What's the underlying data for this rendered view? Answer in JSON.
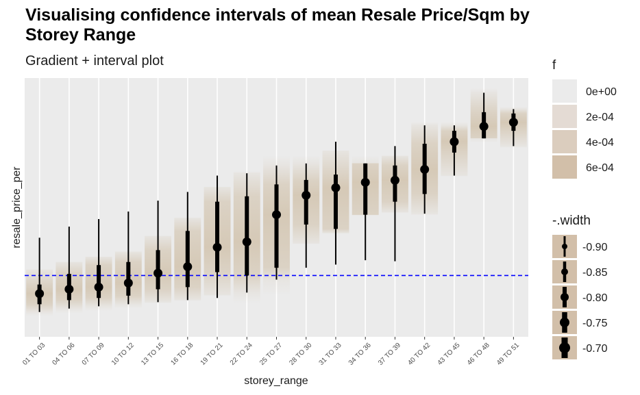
{
  "chart_data": {
    "type": "gradient-interval",
    "title": "Visualising confidence intervals of mean Resale Price/Sqm by Storey Range",
    "subtitle": "Gradient + interval plot",
    "xlabel": "storey_range",
    "ylabel": "resale_price_per",
    "categories": [
      "01 TO 03",
      "04 TO 06",
      "07 TO 09",
      "10 TO 12",
      "13 TO 15",
      "16 TO 18",
      "19 TO 21",
      "22 TO 24",
      "25 TO 27",
      "28 TO 30",
      "31 TO 33",
      "34 TO 36",
      "37 TO 39",
      "40 TO 42",
      "43 TO 45",
      "46 TO 48",
      "49 TO 51"
    ],
    "y_axis_range": [
      0,
      100
    ],
    "reference_line": {
      "value": 23.7,
      "style": "dashed",
      "color": "#0000ff"
    },
    "points": [
      {
        "mean": 16.7,
        "thick": [
          12.6,
          20.2
        ],
        "thin": [
          9.6,
          38.3
        ],
        "gradient": [
          8.0,
          26.0
        ]
      },
      {
        "mean": 18.4,
        "thick": [
          14.2,
          24.3
        ],
        "thin": [
          10.9,
          42.6
        ],
        "gradient": [
          9.0,
          29.0
        ]
      },
      {
        "mean": 19.2,
        "thick": [
          15.0,
          27.7
        ],
        "thin": [
          11.8,
          45.5
        ],
        "gradient": [
          10.0,
          31.0
        ]
      },
      {
        "mean": 20.8,
        "thick": [
          15.9,
          28.9
        ],
        "thin": [
          12.6,
          48.4
        ],
        "gradient": [
          11.0,
          33.0
        ]
      },
      {
        "mean": 24.6,
        "thick": [
          18.4,
          33.5
        ],
        "thin": [
          13.4,
          52.6
        ],
        "gradient": [
          13.0,
          39.0
        ]
      },
      {
        "mean": 27.1,
        "thick": [
          19.2,
          40.9
        ],
        "thin": [
          14.2,
          56.0
        ],
        "gradient": [
          14.0,
          46.0
        ]
      },
      {
        "mean": 34.6,
        "thick": [
          25.0,
          52.2
        ],
        "thin": [
          15.0,
          62.3
        ],
        "gradient": [
          16.0,
          58.0
        ]
      },
      {
        "mean": 36.7,
        "thick": [
          23.7,
          54.3
        ],
        "thin": [
          17.1,
          63.2
        ],
        "gradient": [
          13.0,
          64.0
        ]
      },
      {
        "mean": 47.2,
        "thick": [
          26.7,
          58.9
        ],
        "thin": [
          22.1,
          66.2
        ],
        "gradient": [
          16.0,
          70.0
        ]
      },
      {
        "mean": 54.7,
        "thick": [
          43.4,
          60.6
        ],
        "thin": [
          26.7,
          67.0
        ],
        "gradient": [
          36.0,
          70.0
        ]
      },
      {
        "mean": 57.6,
        "thick": [
          41.7,
          62.7
        ],
        "thin": [
          27.9,
          75.4
        ],
        "gradient": [
          40.0,
          72.0
        ]
      },
      {
        "mean": 59.7,
        "thick": [
          47.2,
          67.0
        ],
        "thin": [
          29.6,
          67.0
        ],
        "gradient": [
          47.0,
          70.0
        ]
      },
      {
        "mean": 60.5,
        "thick": [
          52.2,
          66.2
        ],
        "thin": [
          29.2,
          73.7
        ],
        "gradient": [
          48.0,
          70.0
        ]
      },
      {
        "mean": 64.7,
        "thick": [
          55.2,
          74.6
        ],
        "thin": [
          47.6,
          81.7
        ],
        "gradient": [
          47.0,
          83.0
        ]
      },
      {
        "mean": 75.4,
        "thick": [
          71.2,
          79.6
        ],
        "thin": [
          62.3,
          81.7
        ],
        "gradient": [
          62.0,
          83.0
        ]
      },
      {
        "mean": 81.3,
        "thick": [
          76.7,
          86.8
        ],
        "thin": [
          76.7,
          94.3
        ],
        "gradient": [
          75.0,
          96.0
        ]
      },
      {
        "mean": 82.9,
        "thick": [
          79.6,
          86.3
        ],
        "thin": [
          73.7,
          88.0
        ],
        "gradient": [
          73.0,
          89.0
        ]
      }
    ],
    "legend_fill": {
      "title": "f",
      "labels": [
        "0e+00",
        "2e-04",
        "4e-04",
        "6e-04"
      ],
      "colors": [
        "#ebebeb",
        "#e4dbd4",
        "#dbcdbe",
        "#d2bfa9"
      ]
    },
    "legend_width": {
      "title": "-.width",
      "labels": [
        "-0.90",
        "-0.85",
        "-0.80",
        "-0.75",
        "-0.70"
      ]
    },
    "colors": {
      "panel_bg": "#ebebeb",
      "gridline": "#ffffff",
      "gradient_peak": "#c8b496",
      "interval": "#000000",
      "legend_key_bg": "#d2bfa9"
    }
  }
}
